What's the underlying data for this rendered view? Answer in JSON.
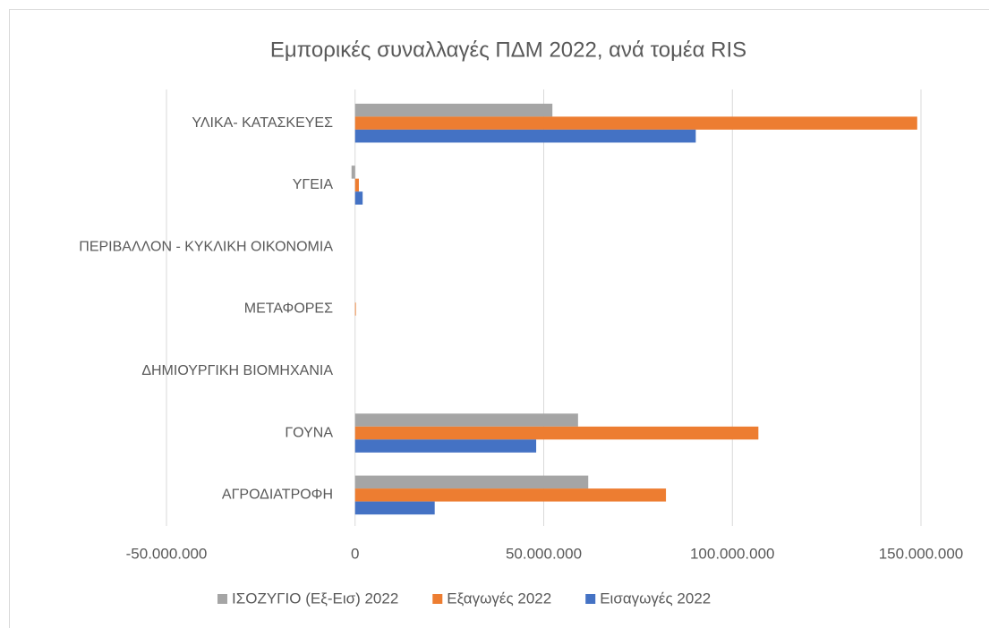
{
  "chart_data": {
    "type": "hbar",
    "title": "Εμπορικές συναλλαγές ΠΔΜ 2022, ανά τομέα RIS",
    "categories": [
      "ΥΛΙΚΑ- ΚΑΤΑΣΚΕΥΕΣ",
      "ΥΓΕΙΑ",
      "ΠΕΡΙΒΑΛΛΟΝ - ΚΥΚΛΙΚΗ ΟΙΚΟΝΟΜΙΑ",
      "ΜΕΤΑΦΟΡΕΣ",
      "ΔΗΜΙΟΥΡΓΙΚΗ ΒΙΟΜΗΧΑΝΙΑ",
      "ΓΟΥΝΑ",
      "ΑΓΡΟΔΙΑΤΡΟΦΗ"
    ],
    "series": [
      {
        "name": "ΙΣΟΖΥΓΙΟ (Εξ-Εισ) 2022",
        "color": "#a5a5a5",
        "values": [
          52300000,
          -950000,
          0,
          0,
          0,
          59100000,
          61800000
        ]
      },
      {
        "name": "Εξαγωγές 2022",
        "color": "#ed7d31",
        "values": [
          149000000,
          1000000,
          0,
          200000,
          0,
          106900000,
          82400000
        ]
      },
      {
        "name": "Εισαγωγές 2022",
        "color": "#4472c4",
        "values": [
          90300000,
          2000000,
          0,
          0,
          0,
          48000000,
          21100000
        ]
      }
    ],
    "xlim": [
      -50000000,
      150000000
    ],
    "xticks": [
      {
        "value": -50000000,
        "label": "-50.000.000"
      },
      0,
      {
        "value": 50000000,
        "label": "50.000.000"
      },
      {
        "value": 100000000,
        "label": "100.000.000"
      },
      {
        "value": 150000000,
        "label": "150.000.000"
      }
    ],
    "grid": true
  }
}
